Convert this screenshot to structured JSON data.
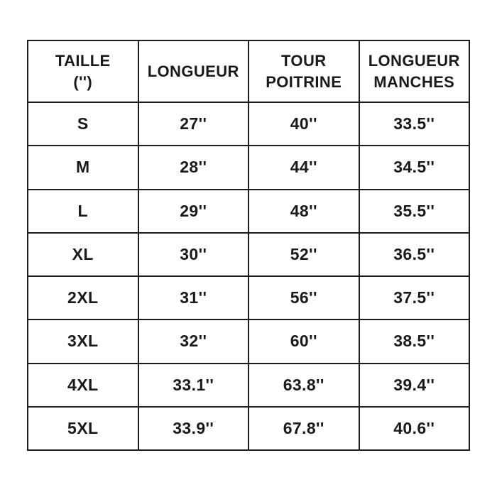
{
  "colors": {
    "background": "#ffffff",
    "border": "#1c1c1c",
    "text": "#1a1a1a"
  },
  "header_lines": [
    {
      "line1": "TAILLE",
      "line2": "('')"
    },
    {
      "line1": "LONGUEUR",
      "line2": ""
    },
    {
      "line1": "TOUR",
      "line2": "POITRINE"
    },
    {
      "line1": "LONGUEUR",
      "line2": "MANCHES"
    }
  ],
  "chart_data": {
    "type": "table",
    "title": "",
    "columns": [
      "TAILLE ('')",
      "LONGUEUR",
      "TOUR POITRINE",
      "LONGUEUR MANCHES"
    ],
    "rows": [
      [
        "S",
        "27''",
        "40''",
        "33.5''"
      ],
      [
        "M",
        "28''",
        "44''",
        "34.5''"
      ],
      [
        "L",
        "29''",
        "48''",
        "35.5''"
      ],
      [
        "XL",
        "30''",
        "52''",
        "36.5''"
      ],
      [
        "2XL",
        "31''",
        "56''",
        "37.5''"
      ],
      [
        "3XL",
        "32''",
        "60''",
        "38.5''"
      ],
      [
        "4XL",
        "33.1''",
        "63.8''",
        "39.4''"
      ],
      [
        "5XL",
        "33.9''",
        "67.8''",
        "40.6''"
      ]
    ]
  }
}
